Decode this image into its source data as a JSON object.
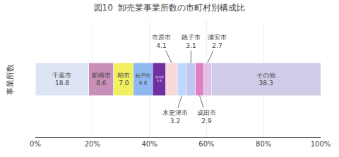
{
  "chart_data": {
    "type": "bar",
    "title": "図10  卸売業事業所数の市町村別構成比",
    "ylabel": "事業所数",
    "orientation": "horizontal",
    "stacked": true,
    "data_labels": true,
    "grid": true,
    "categories": [
      null
    ],
    "series": [
      {
        "name": "千葉市",
        "color": "#dde4f4",
        "values": [
          18.8
        ],
        "value_labels": [
          "18.8"
        ]
      },
      {
        "name": "船橋市",
        "color": "#c890b8",
        "values": [
          8.6
        ],
        "value_labels": [
          "8.6"
        ]
      },
      {
        "name": "柏市",
        "color": "#f0f060",
        "values": [
          7.0
        ],
        "value_labels": [
          "7.0"
        ]
      },
      {
        "name": "松戸市",
        "color": "#90b8f0",
        "values": [
          6.8
        ],
        "value_labels": [
          "6.8"
        ]
      },
      {
        "name": "市川市",
        "color": "#7030a0",
        "values": [
          4.5
        ],
        "value_labels": [
          "4.5"
        ]
      },
      {
        "name": "市原市",
        "color": "#f8d8d8",
        "values": [
          4.1
        ],
        "value_labels": [
          "4.1"
        ]
      },
      {
        "name": "木更津市",
        "color": "#c0d8ff",
        "values": [
          3.2
        ],
        "value_labels": [
          "3.2"
        ]
      },
      {
        "name": "銚子市",
        "color": "#c0c8f0",
        "values": [
          3.1
        ],
        "value_labels": [
          "3.1"
        ]
      },
      {
        "name": "成田市",
        "color": "#e080c0",
        "values": [
          2.9
        ],
        "value_labels": [
          "2.9"
        ]
      },
      {
        "name": "浦安市",
        "color": "#e0c0e8",
        "values": [
          2.7
        ],
        "value_labels": [
          "2.7"
        ]
      },
      {
        "name": "その他",
        "color": "#d0cce8",
        "values": [
          38.3
        ],
        "value_labels": [
          "38.3"
        ]
      }
    ],
    "xlim": [
      0,
      100
    ],
    "xticks": [
      {
        "value": 0,
        "label": "0%"
      },
      {
        "value": 20,
        "label": "20%"
      },
      {
        "value": 40,
        "label": "40%"
      },
      {
        "value": 60,
        "label": "60%"
      },
      {
        "value": 80,
        "label": "80%"
      },
      {
        "value": 100,
        "label": "100%"
      }
    ]
  }
}
